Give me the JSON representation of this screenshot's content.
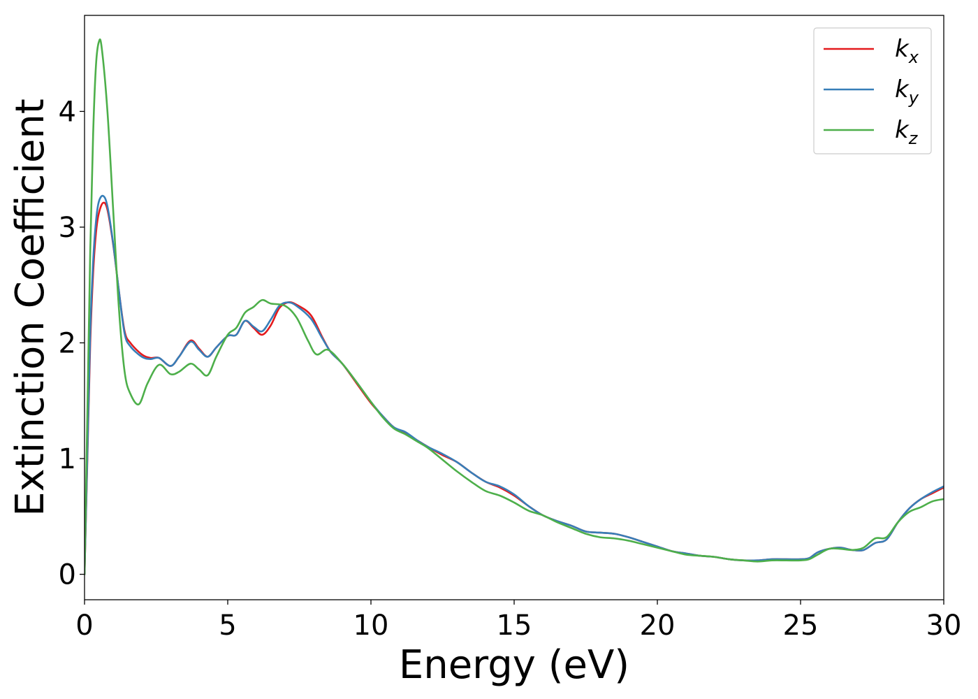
{
  "chart_data": {
    "type": "line",
    "xlabel": "Energy (eV)",
    "ylabel": "Extinction Coefficient",
    "xlim": [
      0,
      30
    ],
    "ylim": [
      -0.22,
      4.83
    ],
    "xticks": [
      0,
      5,
      10,
      15,
      20,
      25,
      30
    ],
    "yticks": [
      0,
      1,
      2,
      3,
      4
    ],
    "grid": false,
    "legend_position": "top-right",
    "series": [
      {
        "name": "k_x",
        "label_main": "k",
        "label_sub": "x",
        "color": "#e41a1c",
        "x": [
          0,
          0.1,
          0.2,
          0.3,
          0.4,
          0.5,
          0.65,
          0.8,
          1.0,
          1.2,
          1.4,
          1.6,
          2.0,
          2.3,
          2.6,
          3.0,
          3.3,
          3.7,
          4.0,
          4.3,
          4.6,
          5.0,
          5.3,
          5.6,
          5.9,
          6.2,
          6.5,
          6.8,
          7.1,
          7.4,
          7.9,
          8.3,
          8.6,
          9.0,
          9.5,
          10.0,
          10.4,
          10.8,
          11.2,
          11.6,
          12.0,
          12.5,
          13.0,
          13.5,
          14.0,
          14.5,
          15.0,
          15.5,
          16.0,
          16.5,
          17.0,
          17.5,
          18.0,
          18.5,
          19.0,
          19.5,
          20.0,
          20.5,
          21.0,
          21.5,
          22.0,
          22.5,
          23.0,
          23.5,
          24.0,
          24.5,
          25.0,
          25.3,
          25.6,
          26.0,
          26.4,
          26.8,
          27.2,
          27.6,
          28.0,
          28.4,
          28.8,
          29.2,
          29.6,
          30.0
        ],
        "y": [
          0,
          1.0,
          2.0,
          2.6,
          2.95,
          3.12,
          3.21,
          3.15,
          2.85,
          2.45,
          2.1,
          2.0,
          1.9,
          1.87,
          1.87,
          1.8,
          1.88,
          2.02,
          1.95,
          1.88,
          1.96,
          2.06,
          2.07,
          2.19,
          2.13,
          2.07,
          2.15,
          2.3,
          2.35,
          2.33,
          2.24,
          2.05,
          1.92,
          1.82,
          1.65,
          1.48,
          1.37,
          1.27,
          1.22,
          1.16,
          1.1,
          1.03,
          0.97,
          0.88,
          0.8,
          0.75,
          0.68,
          0.59,
          0.51,
          0.46,
          0.42,
          0.37,
          0.36,
          0.35,
          0.32,
          0.28,
          0.24,
          0.2,
          0.18,
          0.16,
          0.15,
          0.13,
          0.12,
          0.12,
          0.13,
          0.13,
          0.13,
          0.14,
          0.19,
          0.22,
          0.23,
          0.21,
          0.21,
          0.27,
          0.3,
          0.45,
          0.57,
          0.65,
          0.7,
          0.75
        ]
      },
      {
        "name": "k_y",
        "label_main": "k",
        "label_sub": "y",
        "color": "#377eb8",
        "x": [
          0,
          0.1,
          0.2,
          0.3,
          0.4,
          0.5,
          0.65,
          0.8,
          1.0,
          1.2,
          1.4,
          1.6,
          2.0,
          2.3,
          2.6,
          3.0,
          3.3,
          3.7,
          4.0,
          4.3,
          4.6,
          5.0,
          5.3,
          5.6,
          5.9,
          6.2,
          6.5,
          6.8,
          7.1,
          7.4,
          7.9,
          8.3,
          8.6,
          9.0,
          9.5,
          10.0,
          10.4,
          10.8,
          11.2,
          11.6,
          12.0,
          12.5,
          13.0,
          13.5,
          14.0,
          14.5,
          15.0,
          15.5,
          16.0,
          16.5,
          17.0,
          17.5,
          18.0,
          18.5,
          19.0,
          19.5,
          20.0,
          20.5,
          21.0,
          21.5,
          22.0,
          22.5,
          23.0,
          23.5,
          24.0,
          24.5,
          25.0,
          25.3,
          25.6,
          26.0,
          26.4,
          26.8,
          27.2,
          27.6,
          28.0,
          28.4,
          28.8,
          29.2,
          29.6,
          30.0
        ],
        "y": [
          0,
          1.05,
          2.1,
          2.7,
          3.05,
          3.22,
          3.27,
          3.18,
          2.86,
          2.45,
          2.08,
          1.97,
          1.88,
          1.86,
          1.87,
          1.8,
          1.88,
          2.01,
          1.94,
          1.88,
          1.96,
          2.06,
          2.07,
          2.19,
          2.14,
          2.1,
          2.2,
          2.32,
          2.35,
          2.32,
          2.21,
          2.04,
          1.92,
          1.82,
          1.66,
          1.49,
          1.37,
          1.27,
          1.23,
          1.16,
          1.1,
          1.04,
          0.97,
          0.88,
          0.8,
          0.76,
          0.69,
          0.59,
          0.51,
          0.46,
          0.42,
          0.37,
          0.36,
          0.35,
          0.32,
          0.28,
          0.24,
          0.2,
          0.18,
          0.16,
          0.15,
          0.13,
          0.12,
          0.12,
          0.13,
          0.13,
          0.13,
          0.14,
          0.19,
          0.22,
          0.23,
          0.21,
          0.21,
          0.27,
          0.3,
          0.45,
          0.57,
          0.65,
          0.71,
          0.76
        ]
      },
      {
        "name": "k_z",
        "label_main": "k",
        "label_sub": "z",
        "color": "#4daf4a",
        "x": [
          0,
          0.1,
          0.2,
          0.3,
          0.4,
          0.5,
          0.6,
          0.8,
          1.0,
          1.2,
          1.4,
          1.6,
          1.9,
          2.2,
          2.6,
          3.0,
          3.3,
          3.7,
          4.0,
          4.3,
          4.6,
          5.0,
          5.3,
          5.6,
          5.9,
          6.2,
          6.5,
          7.0,
          7.4,
          7.8,
          8.1,
          8.5,
          9.0,
          9.5,
          10.0,
          10.4,
          10.8,
          11.2,
          11.6,
          12.0,
          12.5,
          13.0,
          13.5,
          14.0,
          14.5,
          15.0,
          15.5,
          16.0,
          16.5,
          17.0,
          17.5,
          18.0,
          18.5,
          19.0,
          19.5,
          20.0,
          20.5,
          21.0,
          21.5,
          22.0,
          22.5,
          23.0,
          23.5,
          24.0,
          24.5,
          25.0,
          25.3,
          25.6,
          26.0,
          26.4,
          26.8,
          27.2,
          27.6,
          28.0,
          28.4,
          28.8,
          29.2,
          29.6,
          30.0
        ],
        "y": [
          0,
          1.4,
          2.8,
          3.8,
          4.4,
          4.6,
          4.55,
          4.0,
          3.15,
          2.3,
          1.75,
          1.56,
          1.47,
          1.65,
          1.81,
          1.73,
          1.75,
          1.82,
          1.77,
          1.72,
          1.88,
          2.07,
          2.13,
          2.26,
          2.31,
          2.37,
          2.34,
          2.32,
          2.22,
          2.02,
          1.9,
          1.94,
          1.82,
          1.66,
          1.49,
          1.36,
          1.26,
          1.21,
          1.15,
          1.09,
          0.99,
          0.89,
          0.8,
          0.72,
          0.68,
          0.62,
          0.55,
          0.51,
          0.45,
          0.4,
          0.35,
          0.32,
          0.31,
          0.29,
          0.26,
          0.23,
          0.2,
          0.17,
          0.16,
          0.15,
          0.13,
          0.12,
          0.11,
          0.12,
          0.12,
          0.12,
          0.13,
          0.17,
          0.22,
          0.22,
          0.21,
          0.23,
          0.31,
          0.32,
          0.45,
          0.54,
          0.58,
          0.63,
          0.65
        ]
      }
    ]
  }
}
